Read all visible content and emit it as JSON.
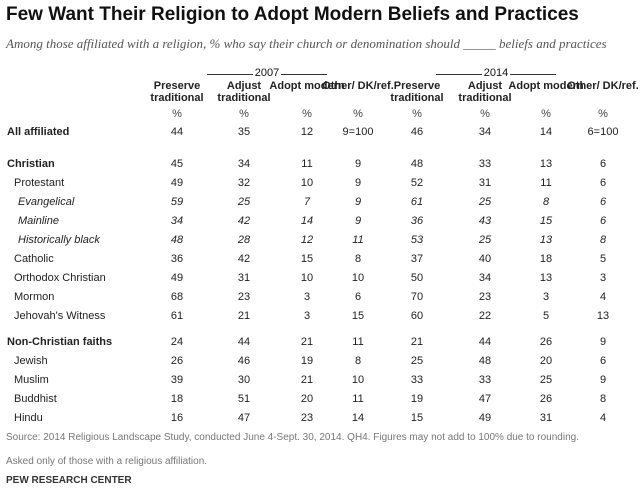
{
  "title": "Few Want Their Religion to Adopt Modern Beliefs and Practices",
  "subtitle": "Among those affiliated with a religion, % who say their church or denomination should _____ beliefs and practices",
  "groups": {
    "y2007": "2007",
    "y2014": "2014"
  },
  "columns": {
    "preserve": "Preserve traditional",
    "adjust": "Adjust traditional",
    "adopt": "Adopt modern",
    "other": "Other/ DK/ref."
  },
  "pct_symbol": "%",
  "rows": [
    {
      "label": "All affiliated",
      "v2007": [
        "44",
        "35",
        "12",
        "9=100"
      ],
      "v2014": [
        "46",
        "34",
        "14",
        "6=100"
      ]
    },
    {
      "label": "Christian",
      "v2007": [
        "45",
        "34",
        "11",
        "9"
      ],
      "v2014": [
        "48",
        "33",
        "13",
        "6"
      ]
    },
    {
      "label": "Protestant",
      "v2007": [
        "49",
        "32",
        "10",
        "9"
      ],
      "v2014": [
        "52",
        "31",
        "11",
        "6"
      ]
    },
    {
      "label": "Evangelical",
      "v2007": [
        "59",
        "25",
        "7",
        "9"
      ],
      "v2014": [
        "61",
        "25",
        "8",
        "6"
      ]
    },
    {
      "label": "Mainline",
      "v2007": [
        "34",
        "42",
        "14",
        "9"
      ],
      "v2014": [
        "36",
        "43",
        "15",
        "6"
      ]
    },
    {
      "label": "Historically black",
      "v2007": [
        "48",
        "28",
        "12",
        "11"
      ],
      "v2014": [
        "53",
        "25",
        "13",
        "8"
      ]
    },
    {
      "label": "Catholic",
      "v2007": [
        "36",
        "42",
        "15",
        "8"
      ],
      "v2014": [
        "37",
        "40",
        "18",
        "5"
      ]
    },
    {
      "label": "Orthodox Christian",
      "v2007": [
        "49",
        "31",
        "10",
        "10"
      ],
      "v2014": [
        "50",
        "34",
        "13",
        "3"
      ]
    },
    {
      "label": "Mormon",
      "v2007": [
        "68",
        "23",
        "3",
        "6"
      ],
      "v2014": [
        "70",
        "23",
        "3",
        "4"
      ]
    },
    {
      "label": "Jehovah's Witness",
      "v2007": [
        "61",
        "21",
        "3",
        "15"
      ],
      "v2014": [
        "60",
        "22",
        "5",
        "13"
      ]
    },
    {
      "label": "Non-Christian faiths",
      "v2007": [
        "24",
        "44",
        "21",
        "11"
      ],
      "v2014": [
        "21",
        "44",
        "26",
        "9"
      ]
    },
    {
      "label": "Jewish",
      "v2007": [
        "26",
        "46",
        "19",
        "8"
      ],
      "v2014": [
        "25",
        "48",
        "20",
        "6"
      ]
    },
    {
      "label": "Muslim",
      "v2007": [
        "39",
        "30",
        "21",
        "10"
      ],
      "v2014": [
        "33",
        "33",
        "25",
        "9"
      ]
    },
    {
      "label": "Buddhist",
      "v2007": [
        "18",
        "51",
        "20",
        "11"
      ],
      "v2014": [
        "19",
        "47",
        "26",
        "8"
      ]
    },
    {
      "label": "Hindu",
      "v2007": [
        "16",
        "47",
        "23",
        "14"
      ],
      "v2014": [
        "15",
        "49",
        "31",
        "4"
      ]
    }
  ],
  "source": "Source: 2014 Religious Landscape Study, conducted June 4-Sept. 30, 2014. QH4. Figures may not add to 100% due to rounding.",
  "note": "Asked only of those with a religious affiliation.",
  "brand": "PEW RESEARCH CENTER"
}
